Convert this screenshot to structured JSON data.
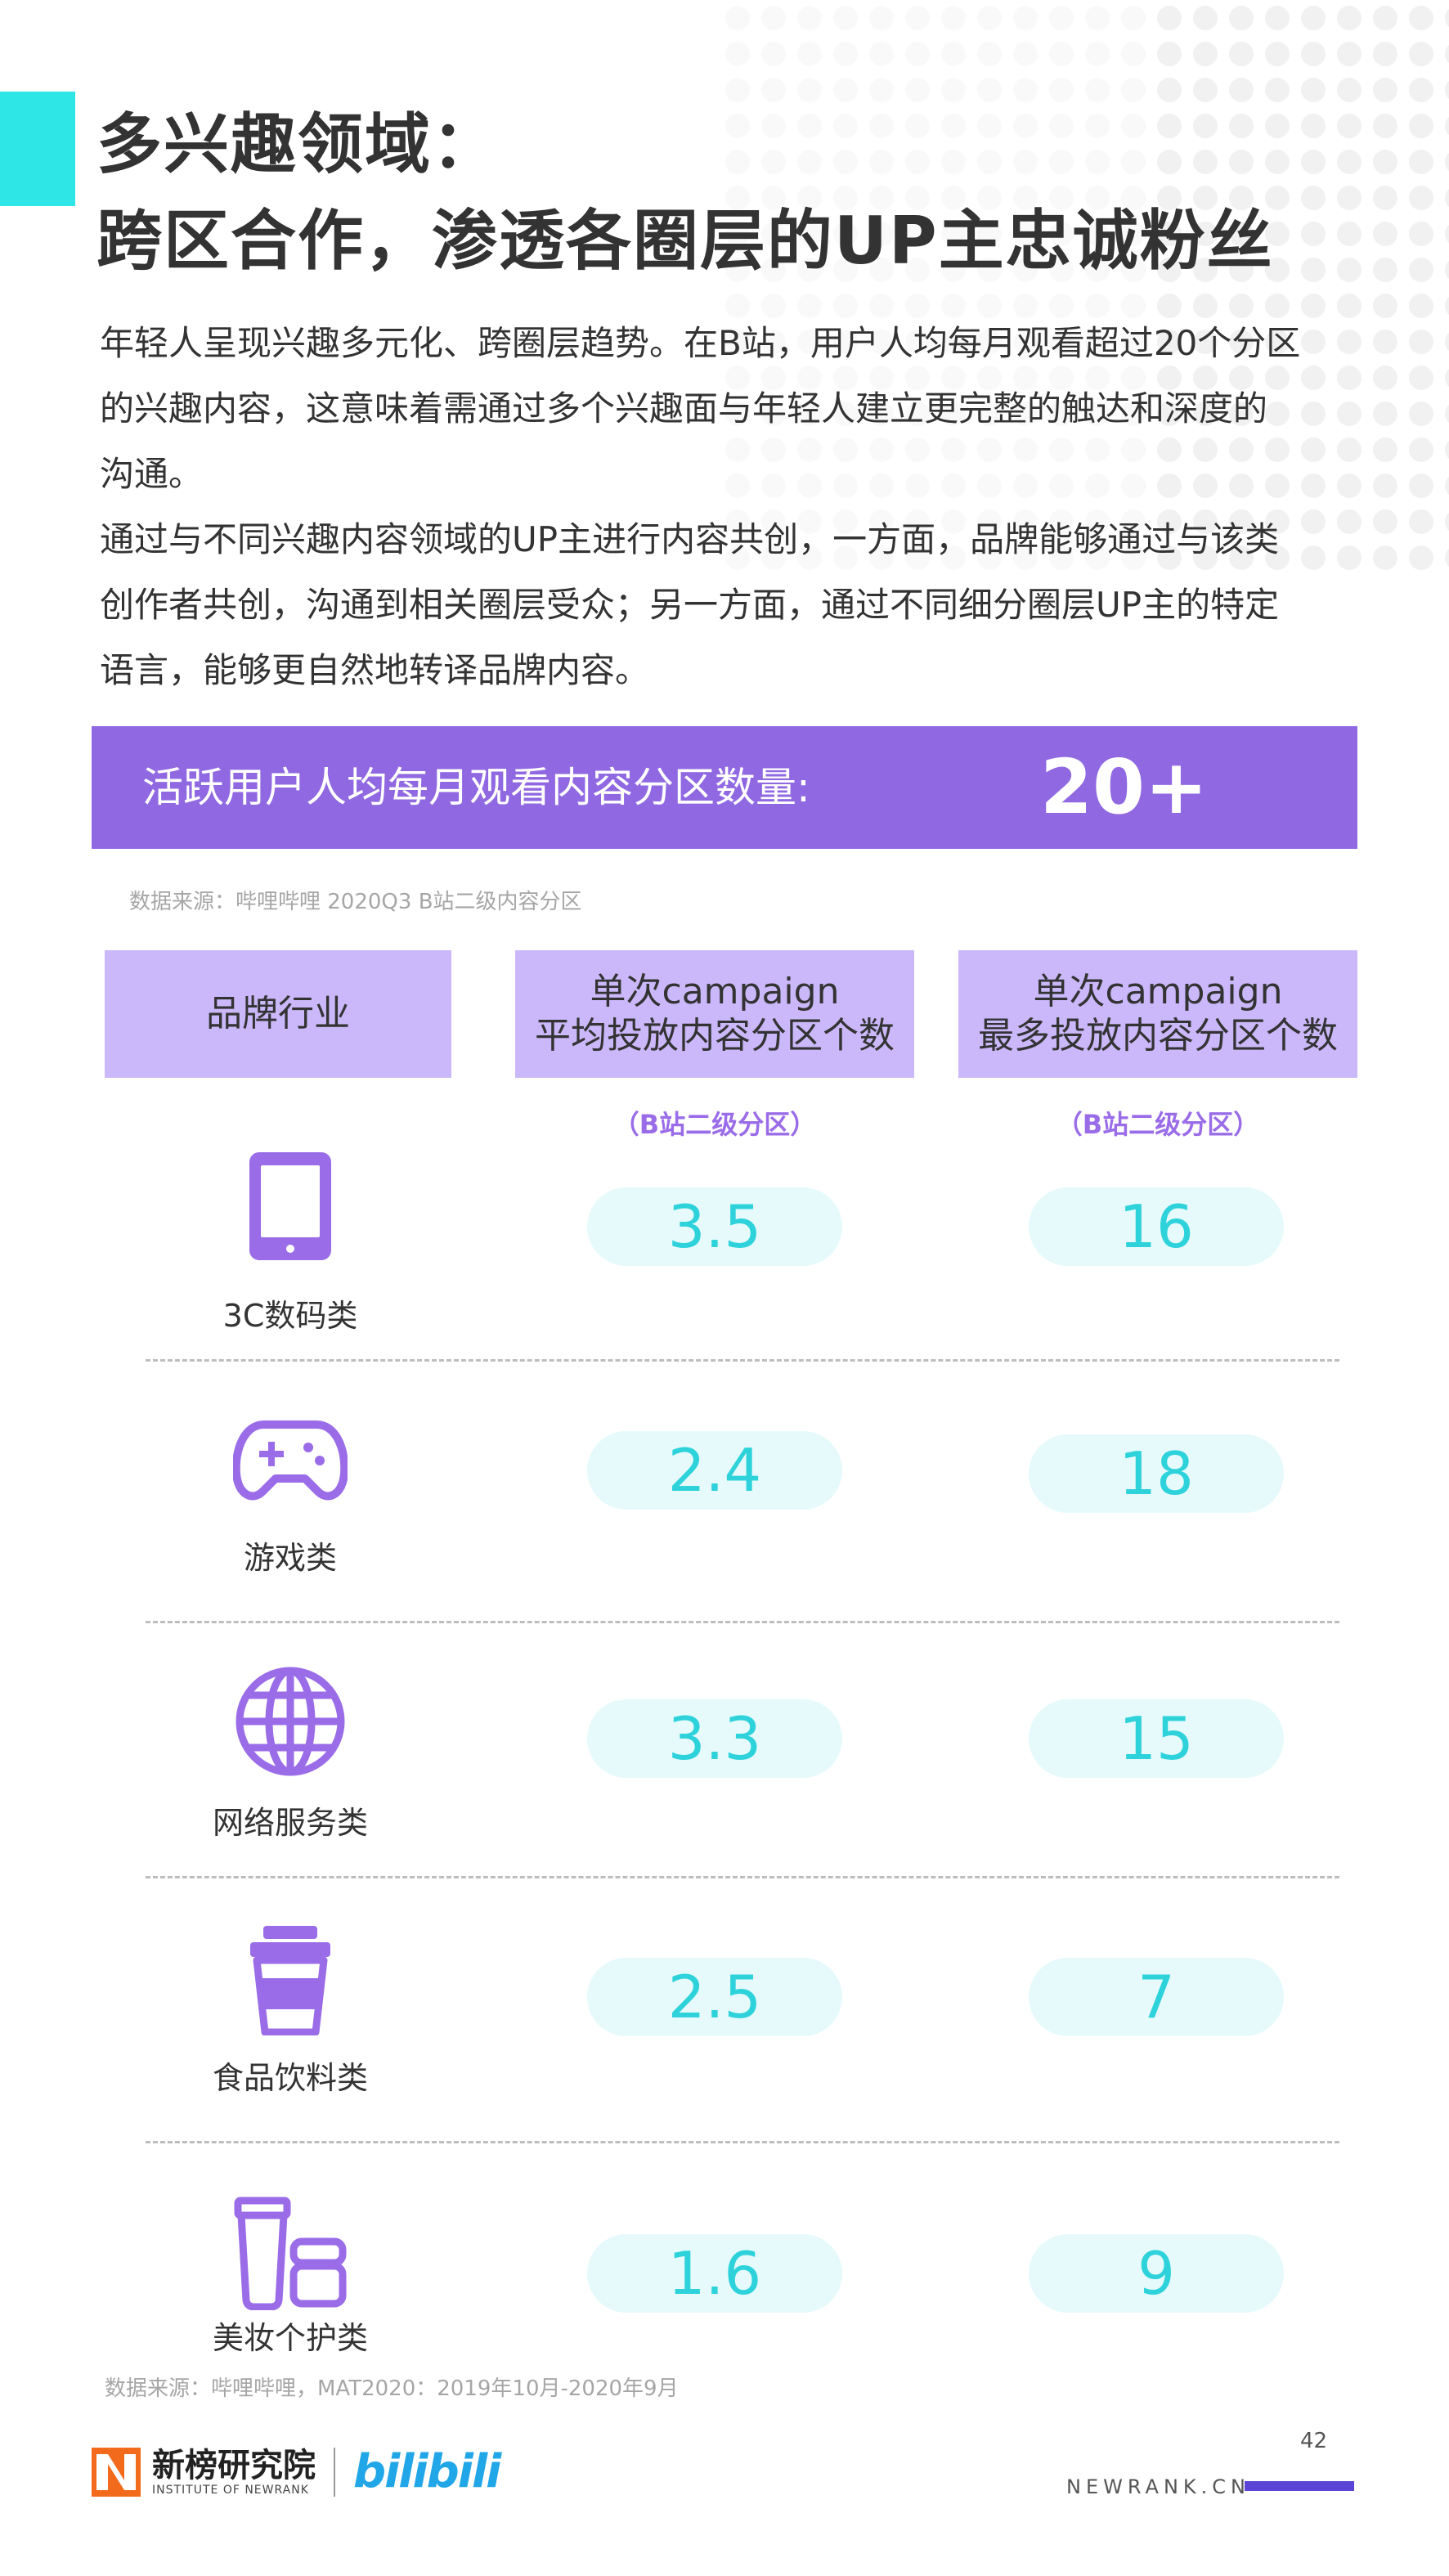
{
  "header": {
    "title_line1": "多兴趣领域：",
    "title_line2": "跨区合作，渗透各圈层的UP主忠诚粉丝"
  },
  "intro": {
    "lines": [
      "年轻人呈现兴趣多元化、跨圈层趋势。在B站，用户人均每月观看超过20个分区",
      "的兴趣内容，这意味着需通过多个兴趣面与年轻人建立更完整的触达和深度的",
      "沟通。",
      "通过与不同兴趣内容领域的UP主进行内容共创，一方面，品牌能够通过与该类",
      "创作者共创，沟通到相关圈层受众；另一方面，通过不同细分圈层UP主的特定",
      "语言，能够更自然地转译品牌内容。"
    ]
  },
  "banner": {
    "label": "活跃用户人均每月观看内容分区数量:",
    "value": "20+"
  },
  "source_1": "数据来源：哔哩哔哩 2020Q3 B站二级内容分区",
  "table": {
    "headers": [
      {
        "line1": "品牌行业",
        "line2": ""
      },
      {
        "line1": "单次campaign",
        "line2": "平均投放内容分区个数"
      },
      {
        "line1": "单次campaign",
        "line2": "最多投放内容分区个数"
      }
    ],
    "sub_labels": [
      "（B站二级分区）",
      "（B站二级分区）"
    ],
    "rows": [
      {
        "name": "3C数码类",
        "icon": "tablet-icon",
        "avg": "3.5",
        "max": "16"
      },
      {
        "name": "游戏类",
        "icon": "gamepad-icon",
        "avg": "2.4",
        "max": "18"
      },
      {
        "name": "网络服务类",
        "icon": "globe-icon",
        "avg": "3.3",
        "max": "15"
      },
      {
        "name": "食品饮料类",
        "icon": "cup-icon",
        "avg": "2.5",
        "max": "7"
      },
      {
        "name": "美妆个护类",
        "icon": "cosmetics-icon",
        "avg": "1.6",
        "max": "9"
      }
    ]
  },
  "source_2": "数据来源：哔哩哔哩，MAT2020：2019年10月-2020年9月",
  "footer": {
    "brand_cn": "新榜研究院",
    "brand_en": "INSTITUTE OF NEWRANK",
    "partner": "bilibili",
    "page_number": "42",
    "site": "NEWRANK.CN"
  },
  "colors": {
    "accent_cyan": "#2ee6e6",
    "banner_purple": "#9068e2",
    "header_lavender": "#cbb8fb",
    "icon_purple": "#9a6ce8",
    "pill_bg": "#e6fafb",
    "pill_text": "#2ed2db"
  }
}
